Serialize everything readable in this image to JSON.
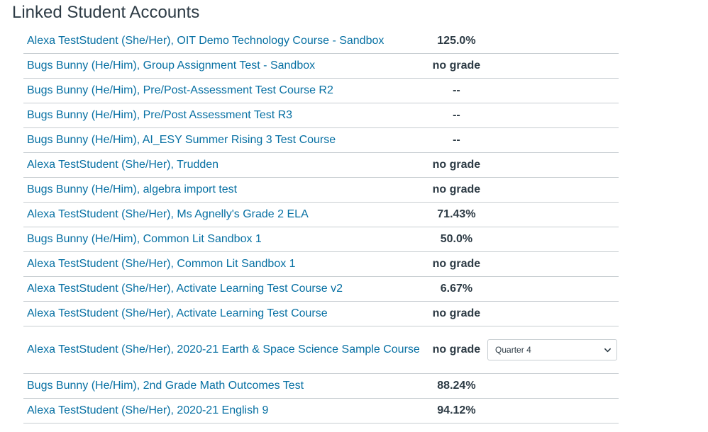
{
  "page": {
    "title": "Linked Student Accounts"
  },
  "accounts": [
    {
      "course": "Alexa TestStudent (She/Her), OIT Demo Technology Course - Sandbox",
      "grade": "125.0%"
    },
    {
      "course": "Bugs Bunny (He/Him), Group Assignment Test - Sandbox",
      "grade": "no grade"
    },
    {
      "course": "Bugs Bunny (He/Him), Pre/Post-Assessment Test Course R2",
      "grade": "--"
    },
    {
      "course": "Bugs Bunny (He/Him), Pre/Post Assessment Test R3",
      "grade": "--"
    },
    {
      "course": "Bugs Bunny (He/Him), AI_ESY Summer Rising 3 Test Course",
      "grade": "--"
    },
    {
      "course": "Alexa TestStudent (She/Her), Trudden",
      "grade": "no grade"
    },
    {
      "course": "Bugs Bunny (He/Him), algebra import test",
      "grade": "no grade"
    },
    {
      "course": "Alexa TestStudent (She/Her), Ms Agnelly's Grade 2 ELA",
      "grade": "71.43%"
    },
    {
      "course": "Bugs Bunny (He/Him), Common Lit Sandbox 1",
      "grade": "50.0%"
    },
    {
      "course": "Alexa TestStudent (She/Her), Common Lit Sandbox 1",
      "grade": "no grade"
    },
    {
      "course": "Alexa TestStudent (She/Her), Activate Learning Test Course v2",
      "grade": "6.67%"
    },
    {
      "course": "Alexa TestStudent (She/Her), Activate Learning Test Course",
      "grade": "no grade"
    },
    {
      "course": "Alexa TestStudent (She/Her), 2020-21 Earth & Space Science Sample Course",
      "grade": "no grade",
      "grading_period": "Quarter 4"
    },
    {
      "course": "Bugs Bunny (He/Him), 2nd Grade Math Outcomes Test",
      "grade": "88.24%"
    },
    {
      "course": "Alexa TestStudent (She/Her), 2020-21 English 9",
      "grade": "94.12%"
    }
  ],
  "colors": {
    "link": "#0770a3",
    "text": "#2d3b45",
    "divider": "#c7cdd1"
  },
  "icons": {
    "select_arrow": "chevron-down-icon"
  }
}
